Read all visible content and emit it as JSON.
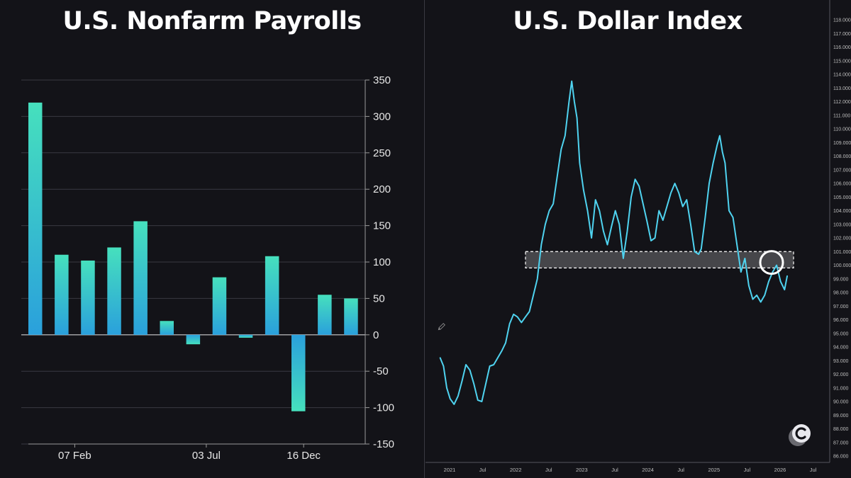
{
  "left": {
    "title": "U.S. Nonfarm Payrolls"
  },
  "right": {
    "title": "U.S. Dollar Index"
  },
  "colors": {
    "background": "#131318",
    "bar_top": "#46e0bd",
    "bar_bottom": "#2aa0dc",
    "line": "#4fd3f0",
    "grid": "#3a3a42"
  },
  "chart_data": [
    {
      "type": "bar",
      "title": "U.S. Nonfarm Payrolls",
      "values": [
        319,
        110,
        102,
        120,
        156,
        19,
        -13,
        79,
        -4,
        108,
        -105,
        55,
        50
      ],
      "yticks": [
        350,
        300,
        250,
        200,
        150,
        100,
        50,
        0,
        -50,
        -100,
        -150
      ],
      "ylim": [
        -150,
        350
      ],
      "xtick_labels": [
        {
          "label": "07 Feb",
          "bar_index": 1.5
        },
        {
          "label": "03 Jul",
          "bar_index": 6.5
        },
        {
          "label": "16 Dec",
          "bar_index": 10.2
        }
      ],
      "grid": true,
      "axis_side": "right"
    },
    {
      "type": "line",
      "title": "U.S. Dollar Index",
      "ylim": [
        86,
        118
      ],
      "yticks": [
        "118.000",
        "117.000",
        "116.000",
        "115.000",
        "114.000",
        "113.000",
        "112.000",
        "111.000",
        "110.000",
        "109.000",
        "108.000",
        "107.000",
        "106.000",
        "105.000",
        "104.000",
        "103.000",
        "102.000",
        "101.000",
        "100.000",
        "99.000",
        "98.000",
        "97.000",
        "96.000",
        "95.000",
        "94.000",
        "93.000",
        "92.000",
        "91.000",
        "90.000",
        "89.000",
        "88.000",
        "87.000",
        "86.000"
      ],
      "xticks": [
        "2021",
        "Jul",
        "2022",
        "Jul",
        "2023",
        "Jul",
        "2024",
        "Jul",
        "2025",
        "Jul",
        "2026",
        "Jul"
      ],
      "xlim": [
        2020.75,
        2026.75
      ],
      "x": [
        2020.75,
        2020.8,
        2020.85,
        2020.9,
        2020.96,
        2021.02,
        2021.08,
        2021.14,
        2021.2,
        2021.26,
        2021.32,
        2021.38,
        2021.44,
        2021.5,
        2021.56,
        2021.62,
        2021.68,
        2021.74,
        2021.8,
        2021.86,
        2021.92,
        2021.98,
        2022.04,
        2022.1,
        2022.16,
        2022.22,
        2022.28,
        2022.34,
        2022.4,
        2022.46,
        2022.52,
        2022.58,
        2022.64,
        2022.7,
        2022.74,
        2022.78,
        2022.82,
        2022.86,
        2022.92,
        2022.98,
        2023.04,
        2023.1,
        2023.16,
        2023.22,
        2023.28,
        2023.34,
        2023.4,
        2023.46,
        2023.52,
        2023.58,
        2023.64,
        2023.7,
        2023.76,
        2023.82,
        2023.88,
        2023.94,
        2024.0,
        2024.06,
        2024.12,
        2024.18,
        2024.24,
        2024.3,
        2024.36,
        2024.42,
        2024.48,
        2024.54,
        2024.6,
        2024.66,
        2024.7,
        2024.76,
        2024.82,
        2024.88,
        2024.94,
        2024.98,
        2025.02,
        2025.06,
        2025.12,
        2025.18,
        2025.24,
        2025.3,
        2025.36,
        2025.42,
        2025.48,
        2025.54,
        2025.6,
        2025.66,
        2025.72,
        2025.78,
        2025.84,
        2025.9,
        2025.96,
        2026.0
      ],
      "values": [
        93.2,
        92.6,
        91.0,
        90.2,
        89.8,
        90.4,
        91.5,
        92.7,
        92.3,
        91.3,
        90.1,
        90.0,
        91.3,
        92.6,
        92.7,
        93.2,
        93.7,
        94.3,
        95.7,
        96.4,
        96.2,
        95.8,
        96.2,
        96.6,
        97.8,
        99.0,
        101.5,
        103.0,
        104.0,
        104.5,
        106.5,
        108.5,
        109.5,
        112.0,
        113.5,
        112.0,
        110.8,
        107.5,
        105.5,
        104.0,
        102.0,
        104.8,
        104.0,
        102.5,
        101.5,
        102.8,
        104.0,
        103.0,
        100.5,
        102.5,
        105.0,
        106.3,
        105.8,
        104.5,
        103.2,
        101.8,
        102.0,
        104.0,
        103.3,
        104.3,
        105.3,
        106.0,
        105.3,
        104.3,
        104.8,
        103.0,
        101.0,
        100.8,
        101.2,
        103.5,
        106.0,
        107.5,
        108.8,
        109.5,
        108.3,
        107.5,
        104.0,
        103.5,
        101.5,
        99.5,
        100.5,
        98.5,
        97.5,
        97.8,
        97.3,
        97.8,
        98.8,
        99.5,
        100.0,
        98.8,
        98.2,
        99.2
      ],
      "annotations": [
        "highlight-band",
        "circle-marker"
      ],
      "axis_side": "right"
    }
  ]
}
